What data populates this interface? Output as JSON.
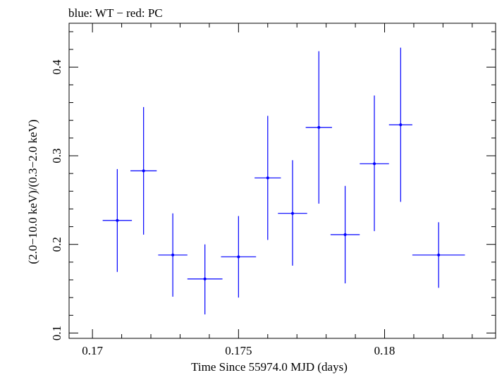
{
  "chart_data": {
    "type": "scatter",
    "title": "blue: WT − red: PC",
    "xlabel": "Time Since 55974.0 MJD (days)",
    "ylabel": "(2.0−10.0 keV)/(0.3−2.0 keV)",
    "xlim": [
      0.1692,
      0.1838
    ],
    "ylim": [
      0.094,
      0.4495
    ],
    "x_ticks": [
      {
        "value": 0.17,
        "label": "0.17"
      },
      {
        "value": 0.175,
        "label": "0.175"
      },
      {
        "value": 0.18,
        "label": "0.18"
      }
    ],
    "y_ticks": [
      {
        "value": 0.1,
        "label": "0.1"
      },
      {
        "value": 0.2,
        "label": "0.2"
      },
      {
        "value": 0.3,
        "label": "0.3"
      },
      {
        "value": 0.4,
        "label": "0.4"
      }
    ],
    "series": [
      {
        "color": "#0000ff",
        "points": [
          {
            "x": 0.17085,
            "xerr": 0.0005,
            "y": 0.227,
            "ylo": 0.169,
            "yhi": 0.285
          },
          {
            "x": 0.17175,
            "xerr": 0.00045,
            "y": 0.283,
            "ylo": 0.211,
            "yhi": 0.355
          },
          {
            "x": 0.17275,
            "xerr": 0.0005,
            "y": 0.188,
            "ylo": 0.141,
            "yhi": 0.235
          },
          {
            "x": 0.17385,
            "xerr": 0.0006,
            "y": 0.161,
            "ylo": 0.121,
            "yhi": 0.2
          },
          {
            "x": 0.175,
            "xerr": 0.0006,
            "y": 0.186,
            "ylo": 0.14,
            "yhi": 0.232
          },
          {
            "x": 0.176,
            "xerr": 0.00045,
            "y": 0.275,
            "ylo": 0.205,
            "yhi": 0.345
          },
          {
            "x": 0.17685,
            "xerr": 0.0005,
            "y": 0.235,
            "ylo": 0.176,
            "yhi": 0.295
          },
          {
            "x": 0.17775,
            "xerr": 0.00045,
            "y": 0.332,
            "ylo": 0.246,
            "yhi": 0.418
          },
          {
            "x": 0.17865,
            "xerr": 0.0005,
            "y": 0.211,
            "ylo": 0.156,
            "yhi": 0.266
          },
          {
            "x": 0.17965,
            "xerr": 0.0005,
            "y": 0.291,
            "ylo": 0.215,
            "yhi": 0.368
          },
          {
            "x": 0.18055,
            "xerr": 0.0004,
            "y": 0.335,
            "ylo": 0.248,
            "yhi": 0.422
          },
          {
            "x": 0.18185,
            "xerr": 0.0009,
            "y": 0.188,
            "ylo": 0.151,
            "yhi": 0.225
          }
        ]
      }
    ]
  }
}
